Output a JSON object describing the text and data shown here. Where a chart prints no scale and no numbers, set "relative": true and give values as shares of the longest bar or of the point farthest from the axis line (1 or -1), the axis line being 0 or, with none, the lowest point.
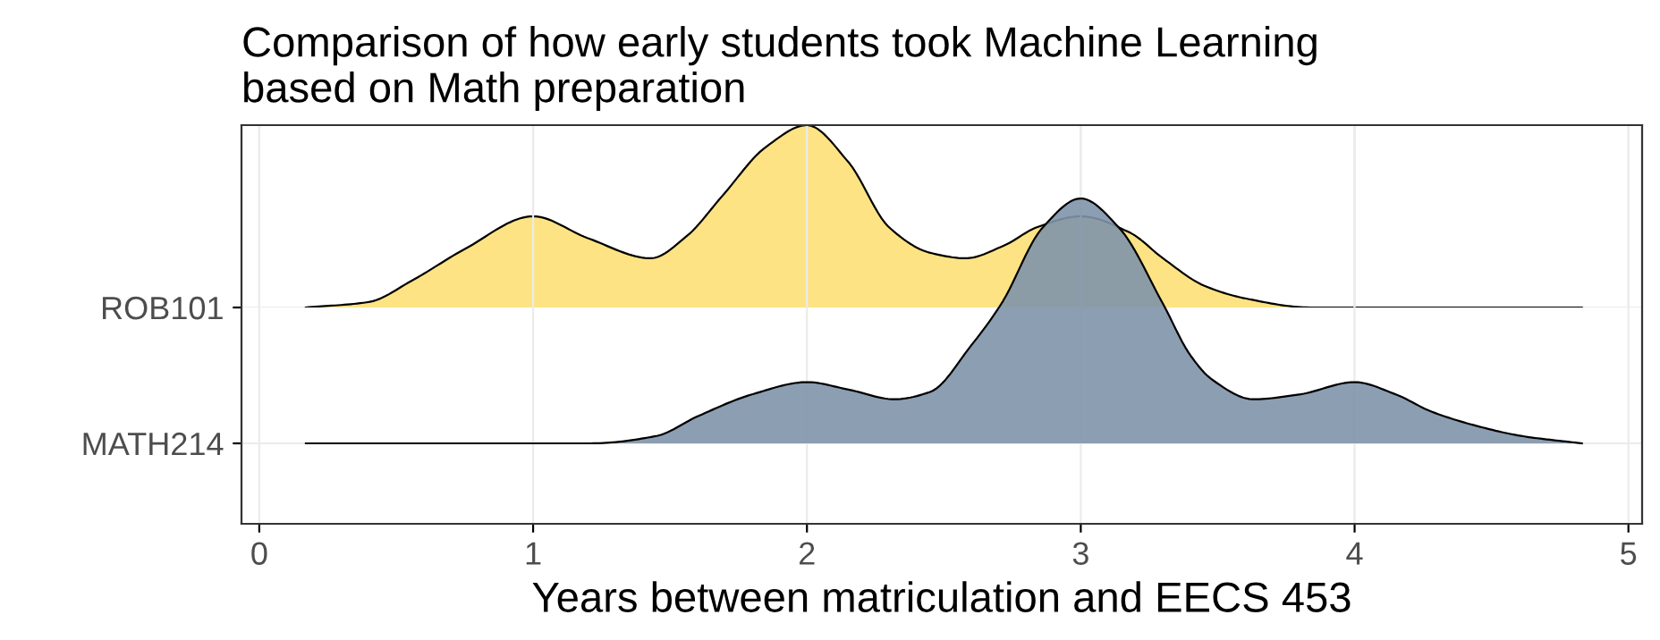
{
  "chart_data": [
    {
      "type": "area",
      "relative": true,
      "title": "Comparison of how early students took Machine Learning\nbased on Math preparation",
      "xlim": [
        -0.065,
        5.05
      ],
      "xticks": [
        0,
        1,
        2,
        3,
        4,
        5
      ],
      "grid": true,
      "tick_labels": "y",
      "series": [
        {
          "name": "ROB101",
          "color": "#fde383",
          "x": [
            0.17,
            0.4,
            0.56,
            0.75,
            1.0,
            1.2,
            1.43,
            1.56,
            1.69,
            1.85,
            2.0,
            2.15,
            2.3,
            2.45,
            2.58,
            2.72,
            2.84,
            3.0,
            3.18,
            3.3,
            3.45,
            3.6,
            3.84,
            4.3,
            4.83
          ],
          "values": [
            0,
            0.03,
            0.15,
            0.32,
            0.5,
            0.38,
            0.27,
            0.39,
            0.61,
            0.88,
            1,
            0.8,
            0.44,
            0.3,
            0.27,
            0.34,
            0.44,
            0.5,
            0.41,
            0.27,
            0.12,
            0.05,
            0,
            0,
            0
          ]
        }
      ]
    },
    {
      "type": "area",
      "relative": true,
      "xlabel": "Years between matriculation and EECS 453",
      "xlim": [
        -0.065,
        5.05
      ],
      "xticks": [
        0,
        1,
        2,
        3,
        4,
        5
      ],
      "grid": true,
      "series": [
        {
          "name": "MATH214",
          "color": "#7f93aa",
          "x": [
            0.17,
            1.21,
            1.45,
            1.6,
            1.8,
            2.0,
            2.15,
            2.32,
            2.45,
            2.6,
            2.71,
            2.86,
            3.0,
            3.14,
            3.3,
            3.4,
            3.48,
            3.63,
            3.8,
            4.0,
            4.15,
            4.28,
            4.45,
            4.61,
            4.83
          ],
          "values": [
            0,
            0,
            0.03,
            0.11,
            0.2,
            0.25,
            0.22,
            0.18,
            0.21,
            0.4,
            0.57,
            0.88,
            1,
            0.88,
            0.57,
            0.36,
            0.26,
            0.18,
            0.2,
            0.25,
            0.2,
            0.13,
            0.07,
            0.03,
            0
          ]
        }
      ]
    }
  ]
}
